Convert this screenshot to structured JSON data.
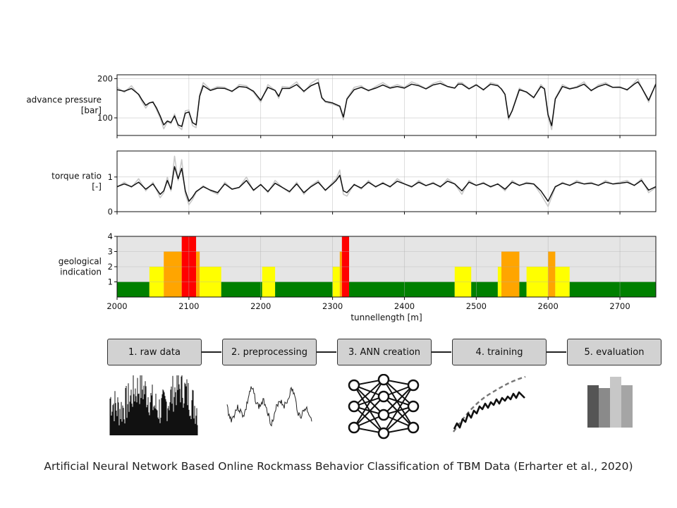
{
  "chart_data": [
    {
      "type": "line",
      "ylabel_lines": [
        "advance pressure",
        "[bar]"
      ],
      "ylim": [
        55,
        210
      ],
      "yticks": [
        100,
        200
      ],
      "xlim": [
        2000,
        2750
      ],
      "xticks": [
        2000,
        2100,
        2200,
        2300,
        2400,
        2500,
        2600,
        2700
      ],
      "grid": true,
      "series": [
        {
          "role": "raw",
          "color": "#c8c8c8",
          "x": [
            2000,
            2010,
            2020,
            2030,
            2035,
            2040,
            2045,
            2050,
            2055,
            2060,
            2065,
            2070,
            2075,
            2080,
            2085,
            2090,
            2095,
            2100,
            2105,
            2110,
            2115,
            2120,
            2130,
            2140,
            2150,
            2160,
            2170,
            2180,
            2190,
            2200,
            2210,
            2220,
            2225,
            2230,
            2240,
            2250,
            2260,
            2270,
            2280,
            2285,
            2290,
            2300,
            2310,
            2315,
            2320,
            2330,
            2340,
            2350,
            2360,
            2370,
            2380,
            2390,
            2400,
            2410,
            2420,
            2430,
            2440,
            2450,
            2460,
            2470,
            2475,
            2480,
            2490,
            2500,
            2510,
            2520,
            2530,
            2535,
            2540,
            2545,
            2550,
            2560,
            2570,
            2580,
            2590,
            2595,
            2600,
            2605,
            2610,
            2620,
            2630,
            2640,
            2650,
            2660,
            2670,
            2680,
            2690,
            2700,
            2710,
            2720,
            2725,
            2730,
            2740,
            2750
          ],
          "y": [
            178,
            165,
            182,
            158,
            140,
            125,
            138,
            142,
            120,
            100,
            72,
            90,
            85,
            110,
            78,
            70,
            118,
            120,
            80,
            75,
            160,
            190,
            172,
            180,
            178,
            166,
            185,
            182,
            165,
            140,
            185,
            170,
            150,
            180,
            178,
            192,
            165,
            188,
            200,
            150,
            140,
            135,
            128,
            95,
            150,
            178,
            182,
            168,
            180,
            190,
            178,
            185,
            178,
            192,
            185,
            175,
            188,
            194,
            180,
            176,
            190,
            190,
            175,
            186,
            170,
            190,
            185,
            172,
            160,
            95,
            120,
            176,
            165,
            150,
            185,
            175,
            102,
            70,
            150,
            185,
            175,
            180,
            192,
            168,
            184,
            190,
            178,
            180,
            170,
            190,
            200,
            178,
            140,
            188
          ]
        },
        {
          "role": "smoothed",
          "color": "#111111",
          "x": [
            2000,
            2010,
            2020,
            2030,
            2035,
            2040,
            2045,
            2050,
            2055,
            2060,
            2065,
            2070,
            2075,
            2080,
            2085,
            2090,
            2095,
            2100,
            2105,
            2110,
            2115,
            2120,
            2130,
            2140,
            2150,
            2160,
            2170,
            2180,
            2190,
            2200,
            2210,
            2220,
            2225,
            2230,
            2240,
            2250,
            2260,
            2270,
            2280,
            2285,
            2290,
            2300,
            2310,
            2315,
            2320,
            2330,
            2340,
            2350,
            2360,
            2370,
            2380,
            2390,
            2400,
            2410,
            2420,
            2430,
            2440,
            2450,
            2460,
            2470,
            2475,
            2480,
            2490,
            2500,
            2510,
            2520,
            2530,
            2535,
            2540,
            2545,
            2550,
            2560,
            2570,
            2580,
            2590,
            2595,
            2600,
            2605,
            2610,
            2620,
            2630,
            2640,
            2650,
            2660,
            2670,
            2680,
            2690,
            2700,
            2710,
            2720,
            2725,
            2730,
            2740,
            2750
          ],
          "y": [
            172,
            168,
            175,
            160,
            145,
            132,
            138,
            140,
            125,
            105,
            82,
            92,
            88,
            105,
            82,
            78,
            112,
            115,
            88,
            82,
            155,
            182,
            170,
            176,
            175,
            168,
            180,
            178,
            168,
            145,
            178,
            170,
            155,
            175,
            175,
            185,
            168,
            182,
            190,
            152,
            142,
            138,
            130,
            102,
            148,
            172,
            178,
            170,
            176,
            184,
            176,
            180,
            176,
            186,
            182,
            174,
            184,
            188,
            180,
            176,
            186,
            186,
            174,
            184,
            172,
            186,
            182,
            174,
            160,
            100,
            118,
            172,
            166,
            152,
            180,
            174,
            108,
            80,
            148,
            180,
            174,
            178,
            186,
            170,
            180,
            186,
            178,
            178,
            172,
            186,
            192,
            178,
            145,
            186
          ]
        }
      ]
    },
    {
      "type": "line",
      "ylabel_lines": [
        "torque ratio",
        "[-]"
      ],
      "ylim": [
        0,
        1.75
      ],
      "yticks": [
        0,
        1
      ],
      "xlim": [
        2000,
        2750
      ],
      "xticks": [
        2000,
        2100,
        2200,
        2300,
        2400,
        2500,
        2600,
        2700
      ],
      "grid": true,
      "series": [
        {
          "role": "raw",
          "color": "#c8c8c8",
          "x": [
            2000,
            2010,
            2020,
            2030,
            2040,
            2050,
            2060,
            2065,
            2070,
            2075,
            2080,
            2085,
            2090,
            2095,
            2100,
            2105,
            2110,
            2120,
            2130,
            2140,
            2150,
            2160,
            2170,
            2180,
            2190,
            2200,
            2210,
            2220,
            2230,
            2240,
            2250,
            2260,
            2270,
            2280,
            2290,
            2300,
            2305,
            2310,
            2315,
            2320,
            2330,
            2340,
            2350,
            2360,
            2370,
            2380,
            2390,
            2400,
            2410,
            2420,
            2430,
            2440,
            2450,
            2460,
            2470,
            2480,
            2490,
            2500,
            2510,
            2520,
            2530,
            2540,
            2550,
            2560,
            2570,
            2580,
            2590,
            2600,
            2610,
            2620,
            2630,
            2640,
            2650,
            2660,
            2670,
            2680,
            2690,
            2700,
            2710,
            2720,
            2730,
            2740,
            2750
          ],
          "y": [
            0.7,
            0.85,
            0.7,
            0.95,
            0.6,
            0.85,
            0.4,
            0.55,
            1.0,
            0.6,
            1.6,
            0.9,
            1.5,
            0.5,
            0.2,
            0.35,
            0.55,
            0.75,
            0.6,
            0.5,
            0.85,
            0.65,
            0.7,
            1.0,
            0.6,
            0.8,
            0.55,
            0.9,
            0.7,
            0.55,
            0.85,
            0.5,
            0.75,
            0.9,
            0.6,
            0.85,
            0.95,
            1.2,
            0.5,
            0.45,
            0.8,
            0.65,
            0.9,
            0.7,
            0.85,
            0.7,
            0.95,
            0.8,
            0.7,
            0.9,
            0.75,
            0.85,
            0.7,
            0.95,
            0.8,
            0.5,
            0.9,
            0.75,
            0.85,
            0.7,
            0.8,
            0.6,
            0.9,
            0.75,
            0.85,
            0.8,
            0.5,
            0.15,
            0.7,
            0.85,
            0.75,
            0.9,
            0.8,
            0.85,
            0.75,
            0.9,
            0.8,
            0.85,
            0.9,
            0.75,
            0.95,
            0.55,
            0.7
          ]
        },
        {
          "role": "smoothed",
          "color": "#111111",
          "x": [
            2000,
            2010,
            2020,
            2030,
            2040,
            2050,
            2060,
            2065,
            2070,
            2075,
            2080,
            2085,
            2090,
            2095,
            2100,
            2105,
            2110,
            2120,
            2130,
            2140,
            2150,
            2160,
            2170,
            2180,
            2190,
            2200,
            2210,
            2220,
            2230,
            2240,
            2250,
            2260,
            2270,
            2280,
            2290,
            2300,
            2305,
            2310,
            2315,
            2320,
            2330,
            2340,
            2350,
            2360,
            2370,
            2380,
            2390,
            2400,
            2410,
            2420,
            2430,
            2440,
            2450,
            2460,
            2470,
            2480,
            2490,
            2500,
            2510,
            2520,
            2530,
            2540,
            2550,
            2560,
            2570,
            2580,
            2590,
            2600,
            2610,
            2620,
            2630,
            2640,
            2650,
            2660,
            2670,
            2680,
            2690,
            2700,
            2710,
            2720,
            2730,
            2740,
            2750
          ],
          "y": [
            0.72,
            0.8,
            0.72,
            0.85,
            0.65,
            0.8,
            0.5,
            0.6,
            0.9,
            0.65,
            1.3,
            0.95,
            1.25,
            0.6,
            0.3,
            0.42,
            0.58,
            0.72,
            0.62,
            0.55,
            0.8,
            0.65,
            0.7,
            0.9,
            0.62,
            0.78,
            0.58,
            0.82,
            0.7,
            0.58,
            0.8,
            0.55,
            0.72,
            0.85,
            0.62,
            0.8,
            0.9,
            1.05,
            0.6,
            0.55,
            0.78,
            0.68,
            0.85,
            0.72,
            0.82,
            0.72,
            0.88,
            0.8,
            0.72,
            0.85,
            0.75,
            0.82,
            0.72,
            0.88,
            0.8,
            0.6,
            0.85,
            0.76,
            0.82,
            0.72,
            0.8,
            0.65,
            0.85,
            0.76,
            0.82,
            0.8,
            0.6,
            0.3,
            0.72,
            0.82,
            0.76,
            0.85,
            0.8,
            0.82,
            0.76,
            0.85,
            0.8,
            0.82,
            0.85,
            0.76,
            0.9,
            0.62,
            0.72
          ]
        }
      ]
    },
    {
      "type": "bar",
      "ylabel_lines": [
        "geological",
        "indication"
      ],
      "ylim": [
        0,
        4
      ],
      "yticks": [
        1,
        2,
        3,
        4
      ],
      "xlim": [
        2000,
        2750
      ],
      "xticks": [
        2000,
        2100,
        2200,
        2300,
        2400,
        2500,
        2600,
        2700
      ],
      "xlabel": "tunnellength [m]",
      "grid": true,
      "background_color": "#e5e5e5",
      "segments": [
        {
          "x0": 2000,
          "x1": 2045,
          "value": 1,
          "color": "#008000"
        },
        {
          "x0": 2045,
          "x1": 2065,
          "value": 2,
          "color": "#ffff00"
        },
        {
          "x0": 2065,
          "x1": 2090,
          "value": 3,
          "color": "#ffa500"
        },
        {
          "x0": 2090,
          "x1": 2110,
          "value": 4,
          "color": "#ff0000"
        },
        {
          "x0": 2110,
          "x1": 2115,
          "value": 3,
          "color": "#ffa500"
        },
        {
          "x0": 2115,
          "x1": 2145,
          "value": 2,
          "color": "#ffff00"
        },
        {
          "x0": 2145,
          "x1": 2202,
          "value": 1,
          "color": "#008000"
        },
        {
          "x0": 2202,
          "x1": 2220,
          "value": 2,
          "color": "#ffff00"
        },
        {
          "x0": 2220,
          "x1": 2300,
          "value": 1,
          "color": "#008000"
        },
        {
          "x0": 2300,
          "x1": 2310,
          "value": 2,
          "color": "#ffff00"
        },
        {
          "x0": 2310,
          "x1": 2313,
          "value": 3,
          "color": "#ffa500"
        },
        {
          "x0": 2313,
          "x1": 2323,
          "value": 4,
          "color": "#ff0000"
        },
        {
          "x0": 2323,
          "x1": 2470,
          "value": 1,
          "color": "#008000"
        },
        {
          "x0": 2470,
          "x1": 2493,
          "value": 2,
          "color": "#ffff00"
        },
        {
          "x0": 2493,
          "x1": 2530,
          "value": 1,
          "color": "#008000"
        },
        {
          "x0": 2530,
          "x1": 2535,
          "value": 2,
          "color": "#ffff00"
        },
        {
          "x0": 2535,
          "x1": 2560,
          "value": 3,
          "color": "#ffa500"
        },
        {
          "x0": 2560,
          "x1": 2570,
          "value": 1,
          "color": "#008000"
        },
        {
          "x0": 2570,
          "x1": 2600,
          "value": 2,
          "color": "#ffff00"
        },
        {
          "x0": 2600,
          "x1": 2610,
          "value": 3,
          "color": "#ffa500"
        },
        {
          "x0": 2610,
          "x1": 2630,
          "value": 2,
          "color": "#ffff00"
        },
        {
          "x0": 2630,
          "x1": 2750,
          "value": 1,
          "color": "#008000"
        }
      ]
    }
  ],
  "workflow": {
    "steps": [
      {
        "label": "1. raw data"
      },
      {
        "label": "2. preprocessing"
      },
      {
        "label": "3. ANN creation"
      },
      {
        "label": "4. training"
      },
      {
        "label": "5. evaluation"
      }
    ]
  },
  "caption": "Artificial Neural Network Based Online Rockmass Behavior Classification of TBM Data (Erharter et al., 2020)"
}
